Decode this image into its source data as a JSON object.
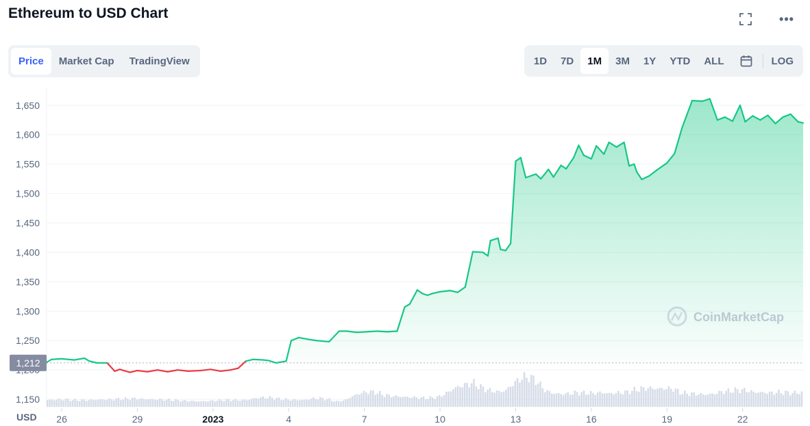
{
  "header": {
    "title": "Ethereum to USD Chart",
    "fullscreen_icon": "fullscreen-icon",
    "more_icon": "more-horizontal-icon"
  },
  "tabs": [
    {
      "label": "Price",
      "active": true
    },
    {
      "label": "Market Cap",
      "active": false
    },
    {
      "label": "TradingView",
      "active": false
    }
  ],
  "ranges": [
    "1D",
    "7D",
    "1M",
    "3M",
    "1Y",
    "YTD",
    "ALL"
  ],
  "active_range": "1M",
  "calendar_icon": "calendar-icon",
  "log_label": "LOG",
  "currency_label": "USD",
  "watermark": "CoinMarketCap",
  "colors": {
    "up": "#16c784",
    "down": "#ea3943",
    "volume": "#cfd6e4",
    "accent": "#3861fb"
  },
  "chart_data": {
    "type": "area",
    "title": "",
    "xlabel": "",
    "ylabel": "",
    "ylim": [
      1135,
      1680
    ],
    "y_ticks": [
      1150,
      1200,
      1250,
      1300,
      1350,
      1400,
      1450,
      1500,
      1550,
      1600,
      1650
    ],
    "y_tick_labels": [
      "1,150",
      "1,200",
      "1,250",
      "1,300",
      "1,350",
      "1,400",
      "1,450",
      "1,500",
      "1,550",
      "1,600",
      "1,650"
    ],
    "x_ticks": [
      "26",
      "29",
      "2023",
      "4",
      "7",
      "10",
      "13",
      "16",
      "19",
      "22"
    ],
    "x_range_days": [
      25.4,
      55.4
    ],
    "x_tick_days": [
      26,
      29,
      32,
      35,
      38,
      41,
      44,
      47,
      50,
      53
    ],
    "baseline": 1212,
    "baseline_label": "1,212",
    "series": [
      {
        "x": [
          25.4,
          25.6,
          26,
          26.5,
          26.9,
          27.1,
          27.4,
          27.8,
          28.1,
          28.3,
          28.7,
          29,
          29.4,
          29.8,
          30.2,
          30.6,
          31,
          31.5,
          31.9,
          32.3,
          32.7,
          33,
          33.3,
          33.6,
          34,
          34.2,
          34.5,
          34.9,
          35.1,
          35.4,
          35.8,
          36.1,
          36.6,
          37,
          37.3,
          37.7,
          38.1,
          38.5,
          38.9,
          39.3,
          39.6,
          39.8,
          40.1,
          40.3,
          40.5,
          40.7,
          41,
          41.4,
          41.7,
          42,
          42.3,
          42.7,
          42.9,
          43,
          43.3,
          43.4,
          43.6,
          43.8,
          44,
          44.2,
          44.4,
          44.8,
          45,
          45.3,
          45.5,
          45.8,
          46,
          46.3,
          46.5,
          46.7,
          47,
          47.2,
          47.5,
          47.7,
          48,
          48.3,
          48.5,
          48.7,
          48.8,
          49,
          49.3,
          49.6,
          50,
          50.3,
          50.6,
          51,
          51.4,
          51.7,
          52,
          52.3,
          52.6,
          52.9,
          53.1,
          53.4,
          53.7,
          54,
          54.3,
          54.6,
          54.9,
          55.2,
          55.4
        ],
        "values": [
          1213,
          1218,
          1219,
          1217,
          1220,
          1215,
          1212,
          1212,
          1198,
          1201,
          1196,
          1199,
          1197,
          1200,
          1197,
          1200,
          1198,
          1199,
          1201,
          1198,
          1200,
          1203,
          1215,
          1218,
          1217,
          1216,
          1212,
          1215,
          1250,
          1255,
          1252,
          1250,
          1248,
          1266,
          1266,
          1264,
          1265,
          1266,
          1265,
          1266,
          1307,
          1312,
          1336,
          1330,
          1327,
          1330,
          1333,
          1335,
          1332,
          1341,
          1401,
          1400,
          1394,
          1420,
          1424,
          1405,
          1403,
          1415,
          1555,
          1561,
          1527,
          1533,
          1525,
          1541,
          1528,
          1548,
          1542,
          1561,
          1582,
          1565,
          1559,
          1581,
          1567,
          1587,
          1579,
          1587,
          1547,
          1550,
          1537,
          1524,
          1530,
          1540,
          1552,
          1568,
          1612,
          1658,
          1657,
          1661,
          1625,
          1630,
          1623,
          1650,
          1622,
          1632,
          1625,
          1633,
          1619,
          1630,
          1635,
          1622,
          1620
        ]
      }
    ],
    "volume_relative": [
      0.45,
      0.48,
      0.5,
      0.46,
      0.44,
      0.45,
      0.47,
      0.49,
      0.5,
      0.52,
      0.54,
      0.55,
      0.52,
      0.5,
      0.49,
      0.47,
      0.44,
      0.4,
      0.38,
      0.36,
      0.38,
      0.42,
      0.45,
      0.46,
      0.44,
      0.47,
      0.58,
      0.62,
      0.6,
      0.52,
      0.48,
      0.46,
      0.45,
      0.55,
      0.57,
      0.5,
      0.35,
      0.42,
      0.7,
      0.9,
      1.0,
      0.95,
      0.78,
      0.72,
      0.68,
      0.64,
      0.62,
      0.58,
      0.6,
      0.7,
      1.0,
      1.3,
      1.45,
      1.6,
      1.3,
      1.1,
      1.0,
      1.05,
      1.5,
      1.9,
      2.0,
      1.7,
      1.1,
      0.9,
      0.85,
      0.88,
      0.95,
      0.92,
      0.9,
      0.95,
      0.88,
      0.93,
      0.96,
      1.1,
      1.2,
      1.25,
      1.2,
      1.22,
      1.2,
      0.92,
      0.88,
      0.85,
      0.82,
      0.86,
      1.0,
      1.05,
      1.12,
      1.1,
      0.98,
      0.95,
      0.93,
      0.96,
      0.95,
      0.92,
      0.95
    ]
  }
}
